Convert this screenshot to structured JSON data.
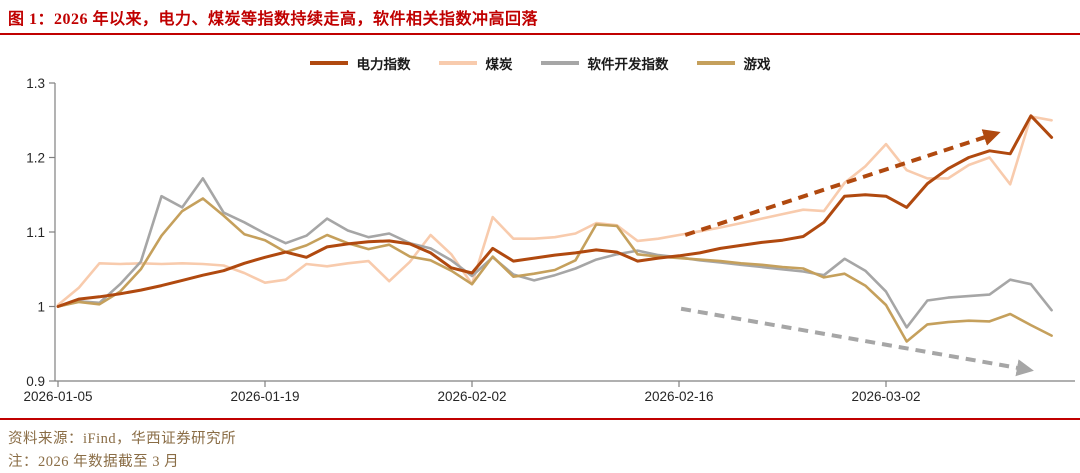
{
  "figure": {
    "title": "图 1：2026 年以来，电力、煤炭等指数持续走高，软件相关指数冲高回落",
    "source_line": "资料来源：iFind，华西证券研究所",
    "note_line": "注：2026 年数据截至 3 月",
    "accent_color": "#C00000",
    "source_text_color": "#8A6D46"
  },
  "chart_data": {
    "type": "line",
    "title": "",
    "xlabel": "",
    "ylabel": "",
    "ylim": [
      0.9,
      1.3
    ],
    "grid": false,
    "legend_position": "top-center",
    "axis_color": "#808080",
    "tick_label_color": "#262626",
    "x": [
      "2026-01-05",
      "2026-01-06",
      "2026-01-07",
      "2026-01-08",
      "2026-01-09",
      "2026-01-12",
      "2026-01-13",
      "2026-01-14",
      "2026-01-15",
      "2026-01-16",
      "2026-01-19",
      "2026-01-20",
      "2026-01-21",
      "2026-01-22",
      "2026-01-23",
      "2026-01-26",
      "2026-01-27",
      "2026-01-28",
      "2026-01-29",
      "2026-01-30",
      "2026-02-02",
      "2026-02-03",
      "2026-02-04",
      "2026-02-05",
      "2026-02-06",
      "2026-02-09",
      "2026-02-10",
      "2026-02-11",
      "2026-02-12",
      "2026-02-13",
      "2026-02-16",
      "2026-02-17",
      "2026-02-18",
      "2026-02-19",
      "2026-02-20",
      "2026-02-23",
      "2026-02-24",
      "2026-02-25",
      "2026-02-26",
      "2026-02-27",
      "2026-03-02",
      "2026-03-03",
      "2026-03-04",
      "2026-03-05",
      "2026-03-06",
      "2026-03-09",
      "2026-03-10",
      "2026-03-11",
      "2026-03-12"
    ],
    "x_tick_indices": [
      0,
      10,
      20,
      30,
      40
    ],
    "x_tick_labels": [
      "2026-01-05",
      "2026-01-19",
      "2026-02-02",
      "2026-02-16",
      "2026-03-02"
    ],
    "y_ticks": [
      0.9,
      1.0,
      1.1,
      1.2,
      1.3
    ],
    "y_tick_labels": [
      "0.9",
      "1",
      "1.1",
      "1.2",
      "1.3"
    ],
    "series": [
      {
        "key": "power-index",
        "name": "电力指数",
        "color": "#B0490F",
        "width": 3,
        "values": [
          1.0,
          1.01,
          1.013,
          1.017,
          1.022,
          1.028,
          1.035,
          1.042,
          1.048,
          1.058,
          1.066,
          1.073,
          1.066,
          1.08,
          1.084,
          1.087,
          1.088,
          1.084,
          1.072,
          1.052,
          1.045,
          1.078,
          1.061,
          1.065,
          1.069,
          1.072,
          1.076,
          1.073,
          1.061,
          1.065,
          1.068,
          1.072,
          1.078,
          1.082,
          1.086,
          1.089,
          1.094,
          1.113,
          1.148,
          1.15,
          1.148,
          1.133,
          1.165,
          1.185,
          1.2,
          1.209,
          1.205,
          1.256,
          1.227
        ]
      },
      {
        "key": "coal",
        "name": "煤炭",
        "color": "#F8CBAD",
        "width": 2.6,
        "values": [
          1.002,
          1.025,
          1.058,
          1.057,
          1.058,
          1.057,
          1.058,
          1.057,
          1.055,
          1.045,
          1.032,
          1.036,
          1.057,
          1.054,
          1.058,
          1.061,
          1.034,
          1.06,
          1.096,
          1.07,
          1.03,
          1.12,
          1.091,
          1.091,
          1.093,
          1.098,
          1.112,
          1.109,
          1.088,
          1.091,
          1.096,
          1.101,
          1.106,
          1.112,
          1.118,
          1.124,
          1.13,
          1.128,
          1.166,
          1.188,
          1.218,
          1.183,
          1.172,
          1.172,
          1.19,
          1.2,
          1.164,
          1.255,
          1.25
        ]
      },
      {
        "key": "software-dev-index",
        "name": "软件开发指数",
        "color": "#A6A6A6",
        "width": 2.6,
        "values": [
          1.0,
          1.007,
          1.005,
          1.03,
          1.06,
          1.148,
          1.133,
          1.172,
          1.126,
          1.113,
          1.098,
          1.085,
          1.095,
          1.118,
          1.102,
          1.093,
          1.098,
          1.085,
          1.078,
          1.062,
          1.041,
          1.066,
          1.043,
          1.035,
          1.042,
          1.051,
          1.063,
          1.07,
          1.075,
          1.069,
          1.066,
          1.062,
          1.059,
          1.056,
          1.053,
          1.05,
          1.047,
          1.042,
          1.064,
          1.048,
          1.02,
          0.972,
          1.008,
          1.012,
          1.014,
          1.016,
          1.036,
          1.03,
          0.995
        ]
      },
      {
        "key": "game",
        "name": "游戏",
        "color": "#C5A05C",
        "width": 2.6,
        "values": [
          1.0,
          1.006,
          1.003,
          1.02,
          1.05,
          1.095,
          1.128,
          1.145,
          1.122,
          1.097,
          1.089,
          1.073,
          1.082,
          1.096,
          1.085,
          1.077,
          1.083,
          1.067,
          1.062,
          1.048,
          1.03,
          1.067,
          1.04,
          1.044,
          1.049,
          1.062,
          1.11,
          1.108,
          1.07,
          1.067,
          1.065,
          1.063,
          1.061,
          1.058,
          1.056,
          1.053,
          1.051,
          1.039,
          1.044,
          1.028,
          1.002,
          0.953,
          0.976,
          0.979,
          0.981,
          0.98,
          0.99,
          0.975,
          0.961
        ]
      }
    ],
    "annotations": [
      {
        "key": "up-trend-arrow",
        "type": "arrow",
        "style": "dashed",
        "color": "#B0490F",
        "from": {
          "index": 30.3,
          "value": 1.096
        },
        "to": {
          "index": 45.3,
          "value": 1.232
        }
      },
      {
        "key": "down-trend-arrow",
        "type": "arrow",
        "style": "dashed",
        "color": "#A6A6A6",
        "from": {
          "index": 30.1,
          "value": 0.997
        },
        "to": {
          "index": 46.9,
          "value": 0.915
        }
      }
    ]
  }
}
